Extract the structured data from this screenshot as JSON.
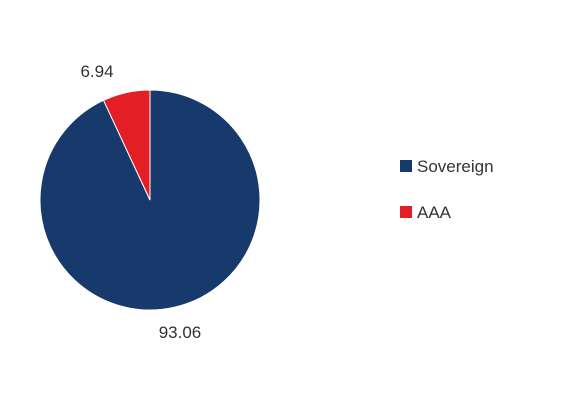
{
  "chart_data": {
    "type": "pie",
    "categories": [
      "Sovereign",
      "AAA"
    ],
    "values": [
      93.06,
      6.94
    ],
    "colors": [
      "#17396b",
      "#e31e24"
    ],
    "data_labels": [
      "93.06",
      "6.94"
    ],
    "legend": {
      "placement": "right",
      "entries": [
        "Sovereign",
        "AAA"
      ]
    },
    "title": ""
  }
}
